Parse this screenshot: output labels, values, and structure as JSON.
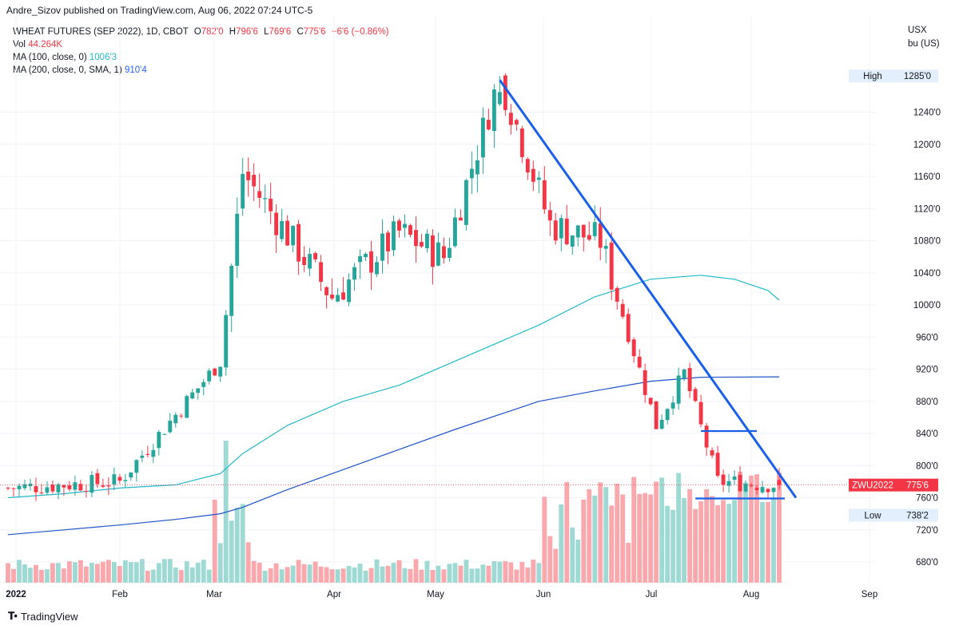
{
  "header": {
    "published": "Andre_Sizov published on TradingView.com, Aug 06, 2022 07:24 UTC-5"
  },
  "legend": {
    "symbol": "WHEAT FUTURES (SEP 2022), 1D, CBOT",
    "o_label": "O",
    "o_val": "782'0",
    "h_label": "H",
    "h_val": "796'6",
    "l_label": "L",
    "l_val": "769'6",
    "c_label": "C",
    "c_val": "775'6",
    "change": "−6'6 (−0.86%)",
    "vol_label": "Vol",
    "vol_val": "44.264K",
    "ma100_label": "MA (100, close, 0)",
    "ma100_val": "1006'3",
    "ma200_label": "MA (200, close, 0, SMA, 1)",
    "ma200_val": "910'4"
  },
  "unit": {
    "line1": "USX",
    "line2": "bu (US)"
  },
  "brand": {
    "name": "TradingView"
  },
  "colors": {
    "up": "#26a69a",
    "down": "#f23645",
    "vol_up": "#9fd9d3",
    "vol_down": "#f9a9ad",
    "ma100": "#22b8c9",
    "ma200": "#1e53c9",
    "trendline": "#1a5fe8",
    "grid": "#f0f3fa"
  },
  "chart_data": {
    "type": "candlestick",
    "instrument": "WHEAT FUTURES (SEP 2022)",
    "y_axis": {
      "range": [
        660,
        1305
      ],
      "ticks": [
        "1240'0",
        "1200'0",
        "1160'0",
        "1120'0",
        "1080'0",
        "1040'0",
        "1000'0",
        "960'0",
        "920'0",
        "880'0",
        "840'0",
        "800'0",
        "760'0",
        "720'0",
        "680'0"
      ],
      "tick_values": [
        1240,
        1200,
        1160,
        1120,
        1080,
        1040,
        1000,
        960,
        920,
        880,
        840,
        800,
        760,
        720,
        680
      ]
    },
    "x_axis": {
      "labels": [
        "2022",
        "Feb",
        "Mar",
        "Apr",
        "May",
        "Jun",
        "Jul",
        "Aug",
        "Sep"
      ]
    },
    "price_labels": [
      {
        "name": "High",
        "text": "1285'0",
        "value": 1285,
        "style": "light"
      },
      {
        "name": "ZWU2022",
        "text": "775'6",
        "value": 775.75,
        "style": "red"
      },
      {
        "name": "Low",
        "text": "738'2",
        "value": 738.25,
        "style": "light"
      }
    ],
    "last_price": 775.75,
    "key_points": [
      {
        "x": "2022-01-03",
        "close": 772
      },
      {
        "x": "2022-02-01",
        "close": 780
      },
      {
        "x": "2022-03-01",
        "close": 930
      },
      {
        "x": "2022-03-08",
        "close": 1165
      },
      {
        "x": "2022-04-01",
        "close": 1010
      },
      {
        "x": "2022-04-20",
        "close": 1090
      },
      {
        "x": "2022-05-03",
        "close": 1060
      },
      {
        "x": "2022-05-17",
        "close": 1285
      },
      {
        "x": "2022-06-01",
        "close": 1100
      },
      {
        "x": "2022-06-15",
        "close": 1080
      },
      {
        "x": "2022-07-01",
        "close": 850
      },
      {
        "x": "2022-07-11",
        "close": 915
      },
      {
        "x": "2022-07-20",
        "close": 780
      },
      {
        "x": "2022-08-05",
        "close": 775.75
      }
    ],
    "ma100_points": [
      [
        0,
        760
      ],
      [
        10,
        765
      ],
      [
        20,
        772
      ],
      [
        30,
        776
      ],
      [
        38,
        790
      ],
      [
        42,
        815
      ],
      [
        50,
        850
      ],
      [
        60,
        880
      ],
      [
        70,
        900
      ],
      [
        80,
        930
      ],
      [
        95,
        975
      ],
      [
        105,
        1010
      ],
      [
        115,
        1032
      ],
      [
        124,
        1037
      ],
      [
        130,
        1032
      ],
      [
        136,
        1018
      ],
      [
        138,
        1006
      ]
    ],
    "ma200_points": [
      [
        0,
        714
      ],
      [
        10,
        720
      ],
      [
        20,
        726
      ],
      [
        30,
        733
      ],
      [
        38,
        740
      ],
      [
        42,
        748
      ],
      [
        50,
        770
      ],
      [
        60,
        795
      ],
      [
        70,
        820
      ],
      [
        80,
        845
      ],
      [
        95,
        880
      ],
      [
        105,
        893
      ],
      [
        115,
        905
      ],
      [
        124,
        910
      ],
      [
        138,
        910.5
      ]
    ],
    "trendlines": [
      {
        "from": [
          88,
          1280
        ],
        "to": [
          141,
          760
        ]
      },
      {
        "from": [
          124,
          843
        ],
        "to": [
          134,
          843
        ]
      },
      {
        "from": [
          123,
          759
        ],
        "to": [
          139,
          759
        ]
      }
    ]
  }
}
